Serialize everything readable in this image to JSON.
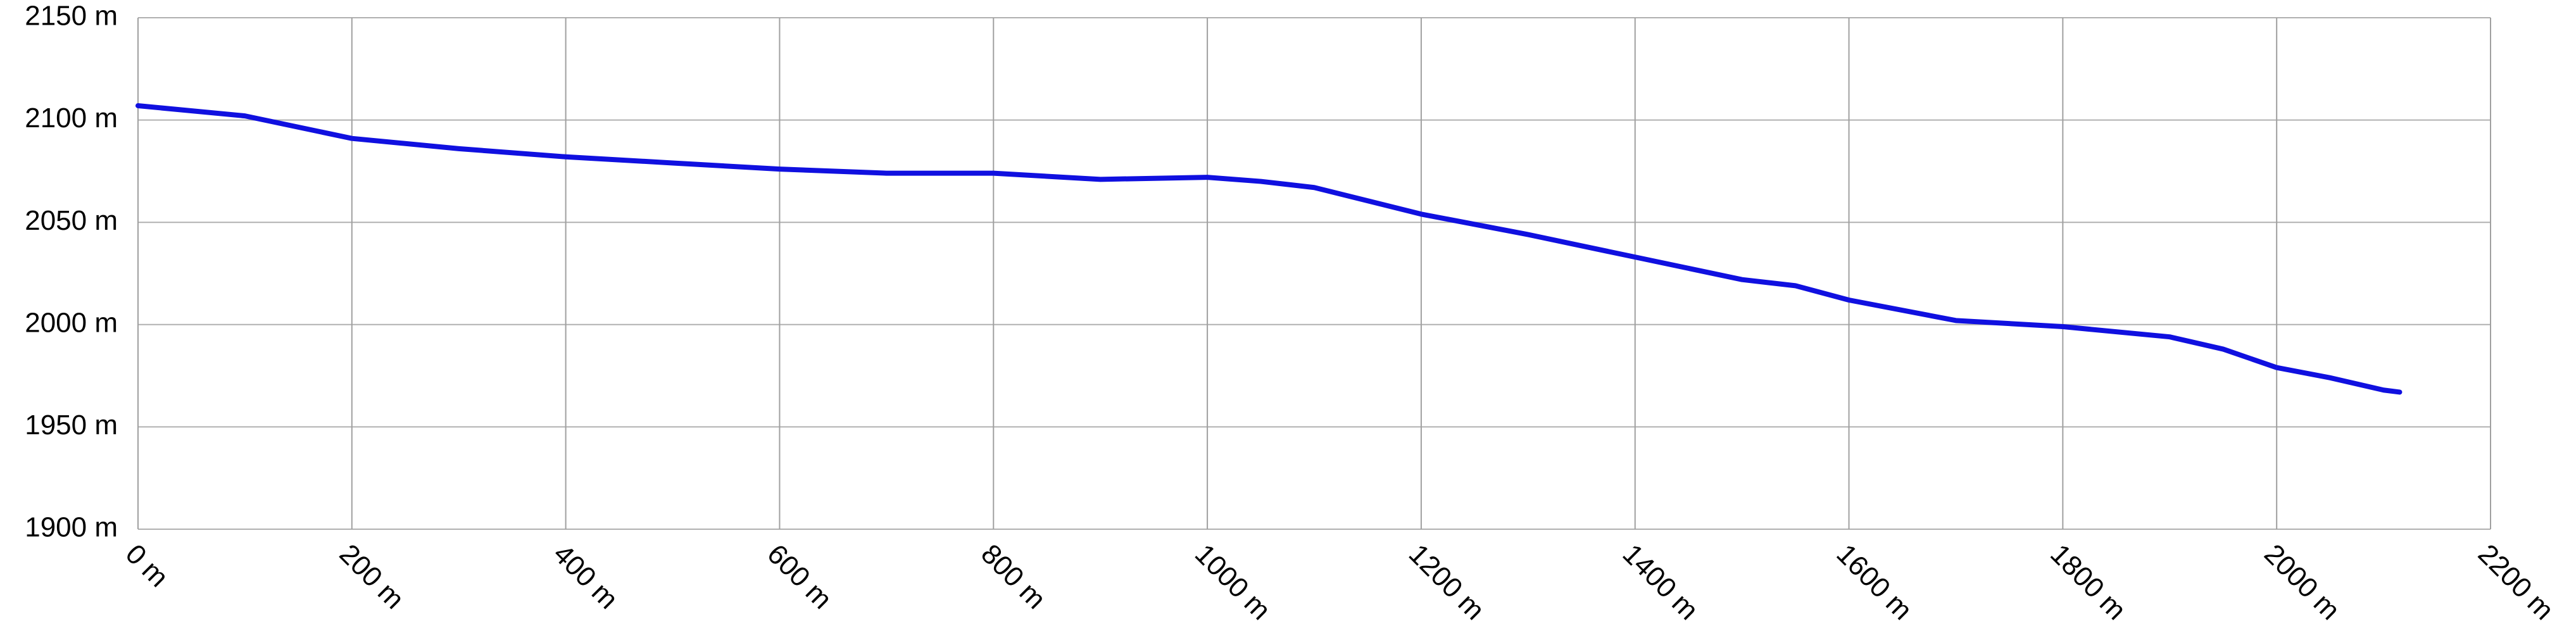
{
  "chart_data": {
    "type": "line",
    "x": [
      0,
      100,
      200,
      300,
      400,
      500,
      600,
      700,
      800,
      900,
      1000,
      1050,
      1100,
      1200,
      1300,
      1400,
      1500,
      1550,
      1600,
      1700,
      1800,
      1900,
      1950,
      2000,
      2050,
      2100,
      2115
    ],
    "series": [
      {
        "color": "#1010e0",
        "values": [
          2107,
          2102,
          2091,
          2086,
          2082,
          2079,
          2076,
          2074,
          2074,
          2071,
          2072,
          2070,
          2067,
          2054,
          2044,
          2033,
          2022,
          2019,
          2012,
          2002,
          1999,
          1994,
          1988,
          1979,
          1974,
          1968,
          1967
        ]
      }
    ],
    "xlim": [
      0,
      2200
    ],
    "xticks": [
      {
        "value": 0,
        "label": "0 m"
      },
      {
        "value": 200,
        "label": "200 m"
      },
      {
        "value": 400,
        "label": "400 m"
      },
      {
        "value": 600,
        "label": "600 m"
      },
      {
        "value": 800,
        "label": "800 m"
      },
      {
        "value": 1000,
        "label": "1000 m"
      },
      {
        "value": 1200,
        "label": "1200 m"
      },
      {
        "value": 1400,
        "label": "1400 m"
      },
      {
        "value": 1600,
        "label": "1600 m"
      },
      {
        "value": 1800,
        "label": "1800 m"
      },
      {
        "value": 2000,
        "label": "2000 m"
      },
      {
        "value": 2200,
        "label": "2200 m"
      }
    ],
    "ylim": [
      1900,
      2150
    ],
    "yticks": [
      {
        "value": 1900,
        "label": "1900 m"
      },
      {
        "value": 1950,
        "label": "1950 m"
      },
      {
        "value": 2000,
        "label": "2000 m"
      },
      {
        "value": 2050,
        "label": "2050 m"
      },
      {
        "value": 2100,
        "label": "2100 m"
      },
      {
        "value": 2150,
        "label": "2150 m"
      }
    ],
    "grid": true
  }
}
